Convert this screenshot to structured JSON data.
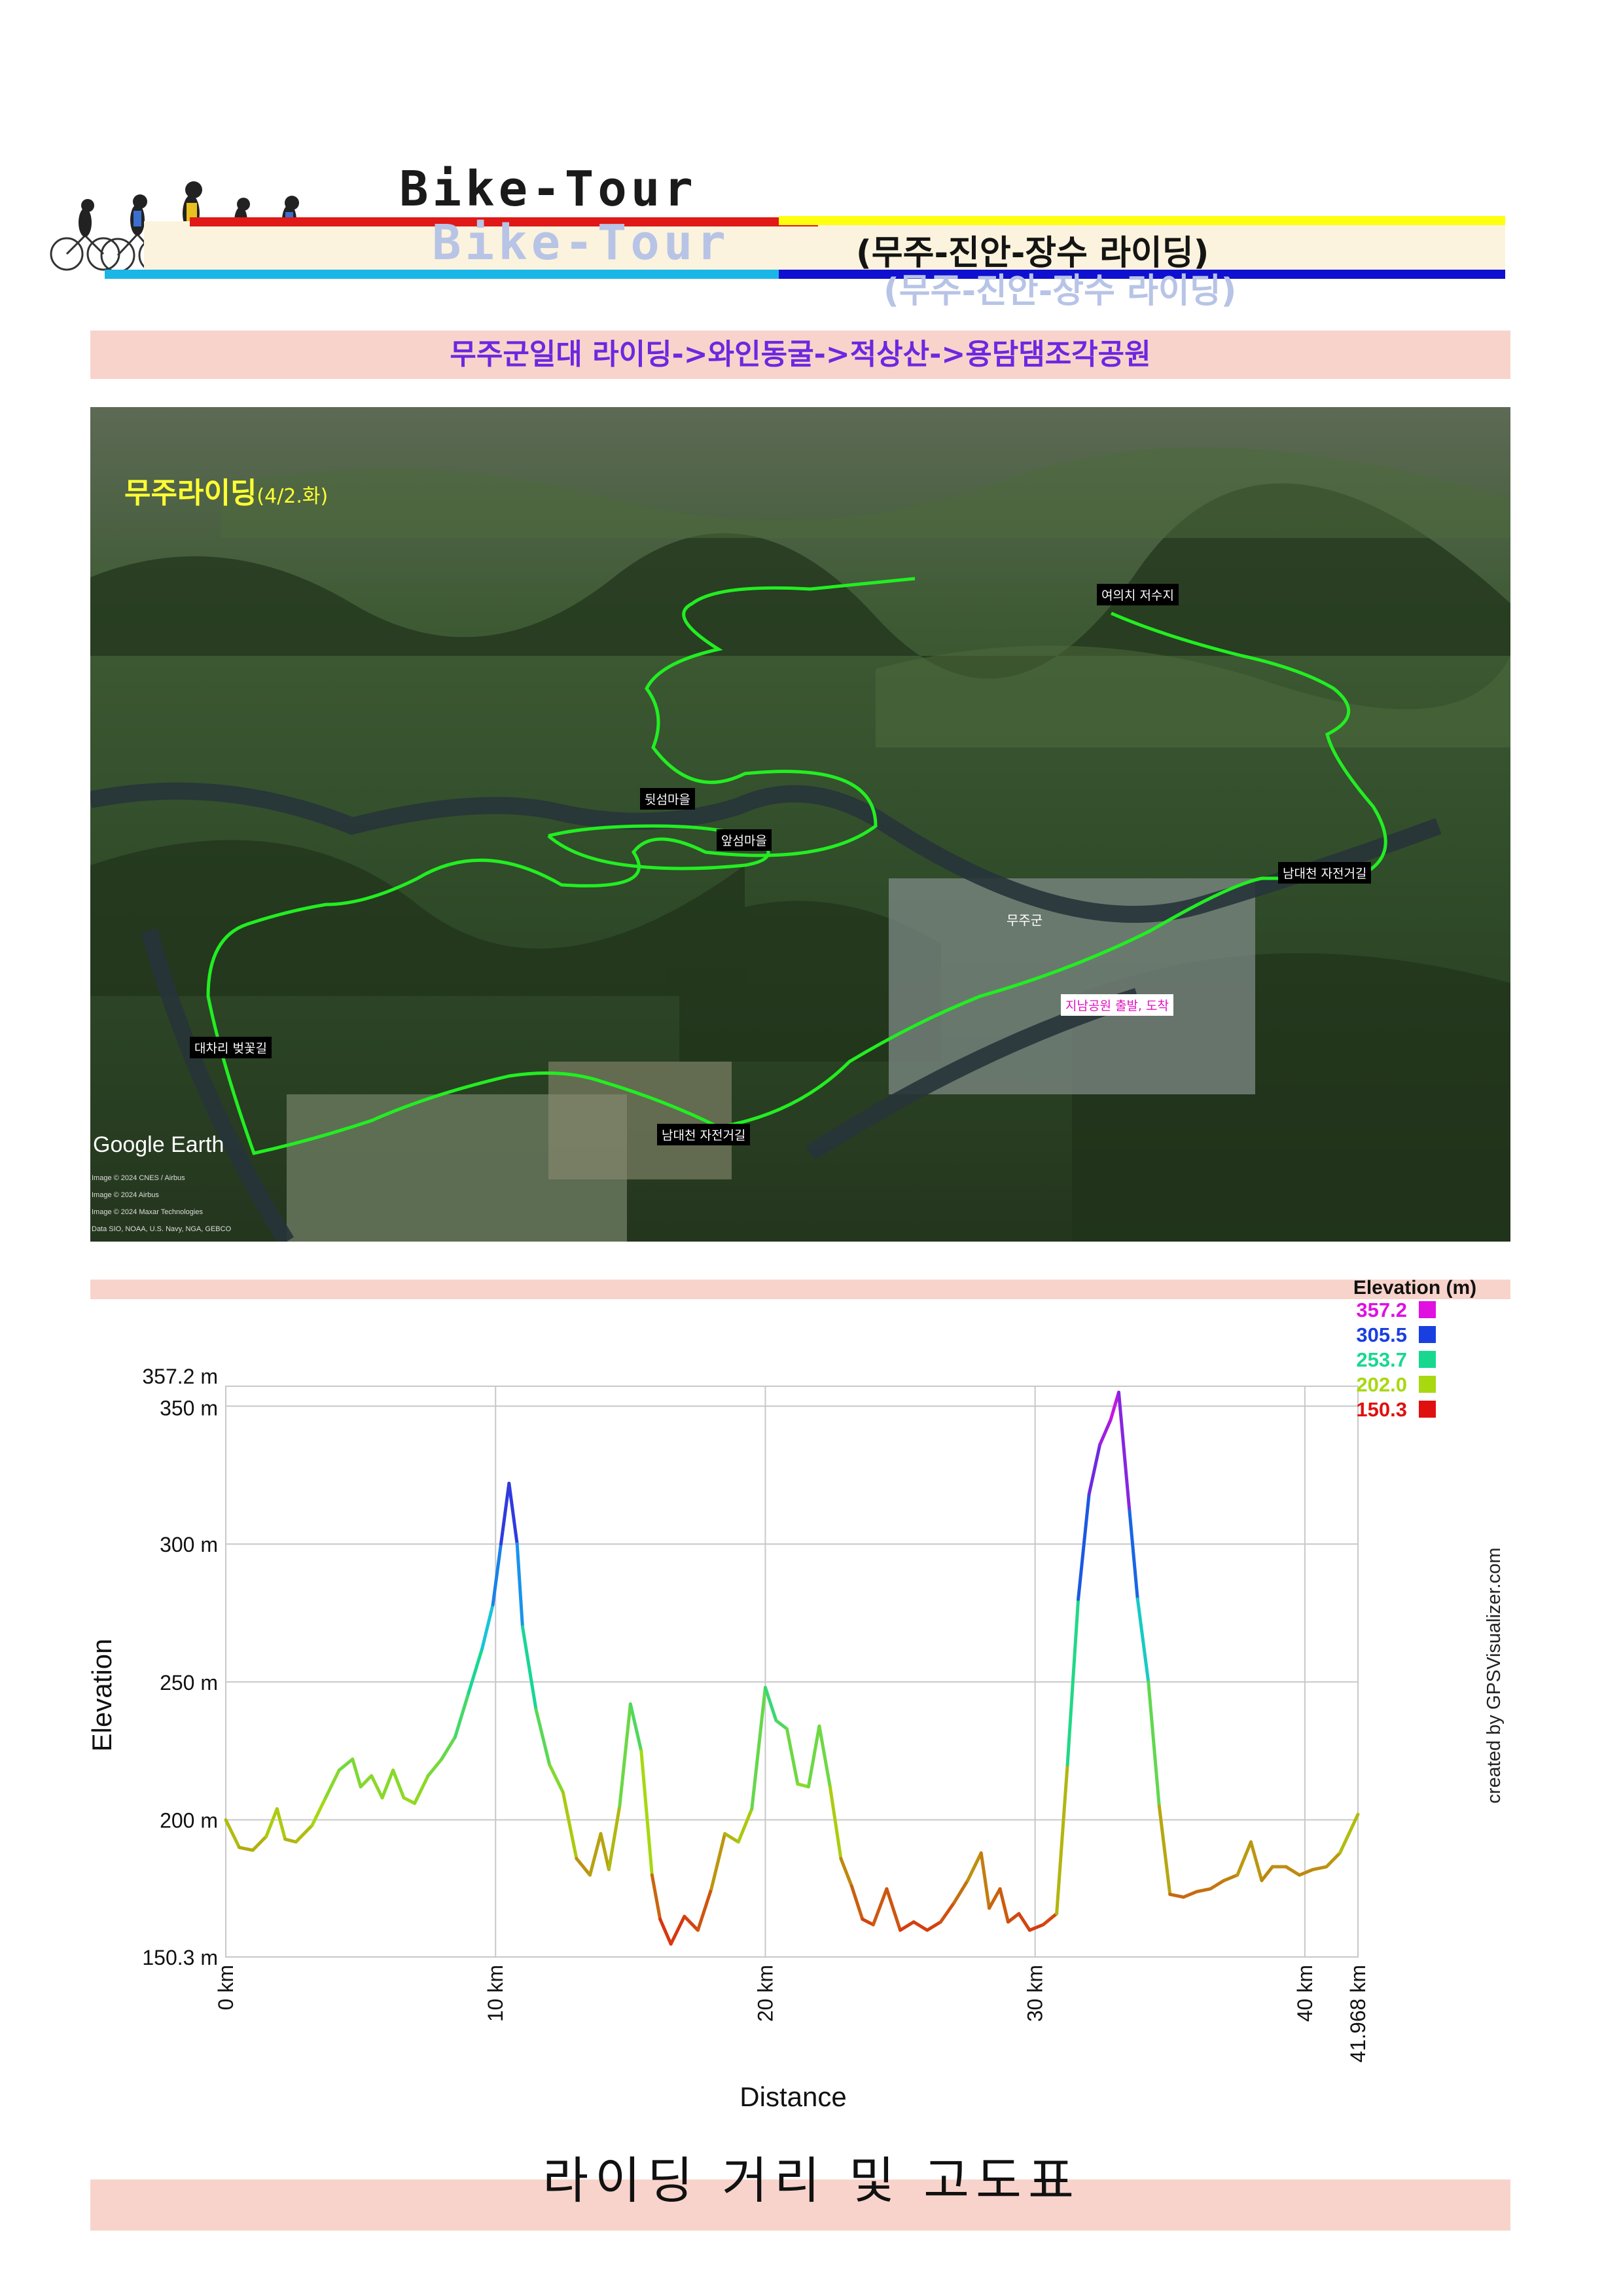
{
  "header": {
    "title": "Bike-Tour",
    "subtitle": "(무주-진안-장수 라이딩)"
  },
  "route": "무주군일대 라이딩->와인동굴->적상산->용담댐조각공원",
  "map": {
    "title": "무주라이딩",
    "date": "(4/2.화)",
    "labels": {
      "yeouichi": "여의치 저수지",
      "dwitseom": "뒷섬마을",
      "apseom": "앞섬마을",
      "namdae_east": "남대천 자전거길",
      "mujugun": "무주군",
      "jinam": "지남공원 출발, 도착",
      "daechari": "대차리 벚꽃길",
      "namdae_south": "남대천 자전거길"
    },
    "google_earth": "Google Earth",
    "credits": [
      "Image © 2024 CNES / Airbus",
      "Image © 2024 Airbus",
      "Image © 2024 Maxar Technologies",
      "Data SIO, NOAA, U.S. Navy, NGA, GEBCO"
    ]
  },
  "chart_data": {
    "type": "line",
    "title": "",
    "xlabel": "Distance",
    "ylabel": "Elevation",
    "xlim": [
      0,
      41.968
    ],
    "ylim": [
      150.3,
      357.2
    ],
    "x_ticks": [
      "0 km",
      "10 km",
      "20 km",
      "30 km",
      "40 km",
      "41.968 km"
    ],
    "y_ticks": [
      "357.2 m",
      "350 m",
      "300 m",
      "250 m",
      "200 m",
      "150.3 m"
    ],
    "legend_title": "Elevation (m)",
    "legend": [
      {
        "label": "357.2",
        "color": "#e010e0"
      },
      {
        "label": "305.5",
        "color": "#1a3fe0"
      },
      {
        "label": "253.7",
        "color": "#18d890"
      },
      {
        "label": "202.0",
        "color": "#a8d810"
      },
      {
        "label": "150.3",
        "color": "#e01010"
      }
    ],
    "watermark": "created by GPSVisualizer.com",
    "series": [
      {
        "x": [
          0,
          0.5,
          1,
          1.5,
          1.9,
          2.2,
          2.6,
          3.2,
          3.7,
          4.2,
          4.7,
          5.0,
          5.4,
          5.8,
          6.2,
          6.6,
          7.0,
          7.5,
          8.0,
          8.5,
          9.0,
          9.5,
          9.9,
          10.2,
          10.5,
          10.8,
          11.0,
          11.5,
          12.0,
          12.5,
          13.0,
          13.5,
          13.9,
          14.2,
          14.6,
          15.0,
          15.4,
          15.8,
          16.1,
          16.5,
          17.0,
          17.5,
          18.0,
          18.5,
          19.0,
          19.5,
          20.0,
          20.4,
          20.8,
          21.2,
          21.6,
          22.0,
          22.4,
          22.8,
          23.2,
          23.6,
          24.0,
          24.5,
          25.0,
          25.5,
          26.0,
          26.5,
          27.0,
          27.5,
          28.0,
          28.3,
          28.7,
          29.0,
          29.4,
          29.8,
          30.3,
          30.8,
          31.2,
          31.6,
          32.0,
          32.4,
          32.8,
          33.1,
          33.5,
          33.8,
          34.2,
          34.6,
          35.0,
          35.5,
          36.0,
          36.5,
          37.0,
          37.5,
          38.0,
          38.4,
          38.8,
          39.3,
          39.8,
          40.3,
          40.8,
          41.3,
          41.968
        ],
        "y": [
          200,
          190,
          189,
          194,
          204,
          193,
          192,
          198,
          208,
          218,
          222,
          212,
          216,
          208,
          218,
          208,
          206,
          216,
          222,
          230,
          246,
          262,
          278,
          300,
          322,
          300,
          270,
          240,
          220,
          210,
          186,
          180,
          195,
          182,
          205,
          242,
          225,
          180,
          164,
          155,
          165,
          160,
          175,
          195,
          192,
          204,
          248,
          236,
          233,
          213,
          212,
          234,
          212,
          186,
          176,
          164,
          162,
          175,
          160,
          163,
          160,
          163,
          170,
          178,
          188,
          168,
          175,
          163,
          166,
          160,
          162,
          166,
          220,
          280,
          318,
          336,
          345,
          355,
          312,
          280,
          250,
          205,
          173,
          172,
          174,
          175,
          178,
          180,
          192,
          178,
          183,
          183,
          180,
          182,
          183,
          188,
          202
        ]
      }
    ]
  },
  "bottom_title": "라이딩 거리 및  고도표"
}
